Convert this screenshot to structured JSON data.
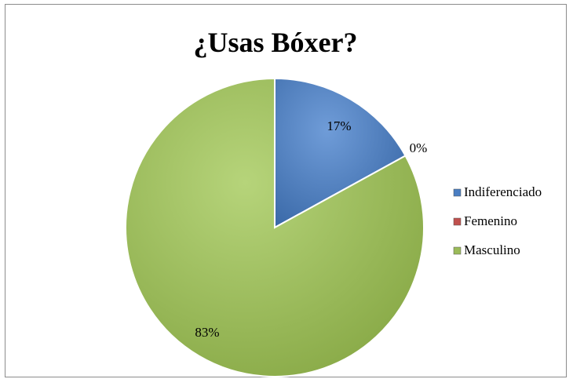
{
  "chart_data": {
    "type": "pie",
    "title": "¿Usas Bóxer?",
    "categories": [
      "Indiferenciado",
      "Femenino",
      "Masculino"
    ],
    "values": [
      17,
      0,
      83
    ],
    "data_labels": [
      "17%",
      "0%",
      "83%"
    ],
    "colors": [
      "#4a7ec2",
      "#c0504d",
      "#9bbb59"
    ],
    "legend_position": "right"
  }
}
